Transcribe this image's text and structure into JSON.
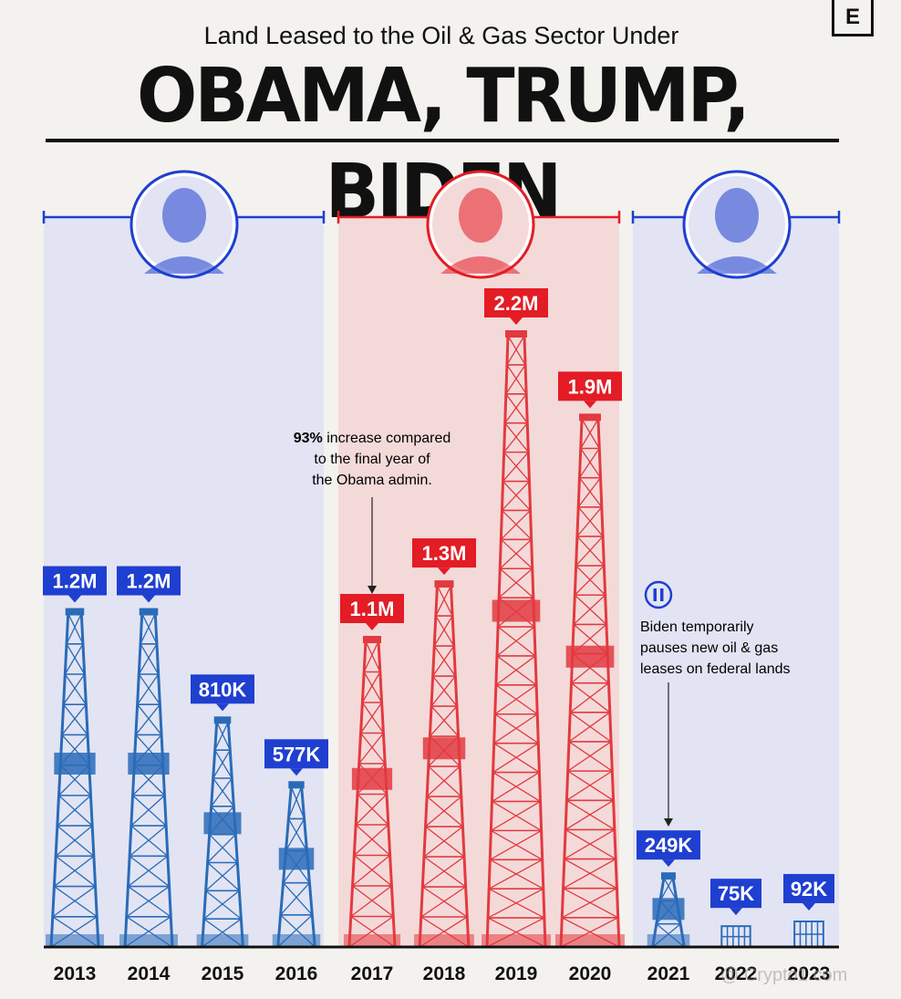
{
  "brand": {
    "logo_letter": "E"
  },
  "header": {
    "subtitle": "Land Leased to the Oil & Gas Sector Under",
    "title": "OBAMA, TRUMP, BIDEN"
  },
  "colors": {
    "obama": "#1f3fd0",
    "trump": "#e31c25",
    "biden": "#1f3fd0",
    "obama_band": "#e2e4f3",
    "trump_band": "#f4d9d9"
  },
  "administrations": [
    {
      "name": "Obama",
      "color": "#1f3fd0",
      "years": [
        "2013",
        "2016"
      ]
    },
    {
      "name": "Trump",
      "color": "#e31c25",
      "years": [
        "2017",
        "2020"
      ]
    },
    {
      "name": "Biden",
      "color": "#1f3fd0",
      "years": [
        "2021",
        "2023"
      ]
    }
  ],
  "annotations": {
    "trump_increase": {
      "bold": "93%",
      "rest": " increase compared",
      "line2": "to the final year of",
      "line3": "the Obama admin."
    },
    "biden_pause": {
      "line1": "Biden temporarily",
      "line2": "pauses new oil & gas",
      "line3": "leases on federal lands",
      "icon": "pause-icon"
    }
  },
  "watermark": "@ Crypto1.com",
  "chart_data": {
    "type": "bar",
    "categories": [
      "2013",
      "2014",
      "2015",
      "2016",
      "2017",
      "2018",
      "2019",
      "2020",
      "2021",
      "2022",
      "2023"
    ],
    "values": [
      1200000,
      1200000,
      810000,
      577000,
      1100000,
      1300000,
      2200000,
      1900000,
      249000,
      75000,
      92000
    ],
    "labels": [
      "1.2M",
      "1.2M",
      "810K",
      "577K",
      "1.1M",
      "1.3M",
      "2.2M",
      "1.9M",
      "249K",
      "75K",
      "92K"
    ],
    "series_colors": [
      "#1f3fd0",
      "#1f3fd0",
      "#1f3fd0",
      "#1f3fd0",
      "#e31c25",
      "#e31c25",
      "#e31c25",
      "#e31c25",
      "#1f3fd0",
      "#1f3fd0",
      "#1f3fd0"
    ],
    "title": "Land Leased to the Oil & Gas Sector Under OBAMA, TRUMP, BIDEN",
    "xlabel": "",
    "ylabel": "",
    "ylim": [
      0,
      2200000
    ],
    "grid": false
  }
}
